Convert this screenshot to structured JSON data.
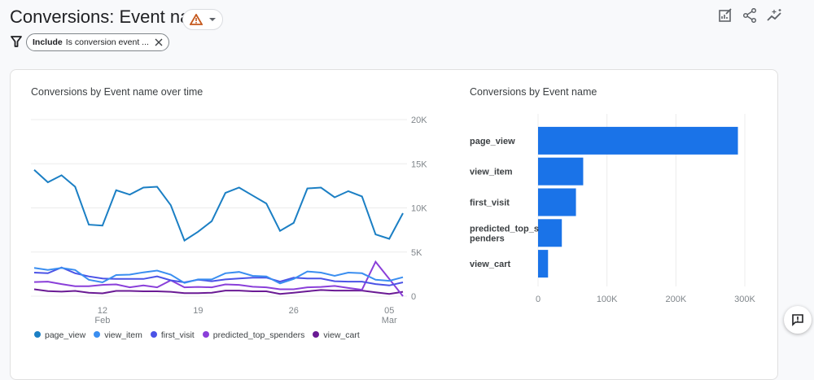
{
  "header": {
    "title": "Conversions: Event name",
    "warning_icon": "warning-triangle-icon",
    "dropdown_icon": "caret-down-icon"
  },
  "filter": {
    "icon": "filter-icon",
    "bold": "Include",
    "text": "Is conversion event ..."
  },
  "toolbar": {
    "icons": [
      "edit-report-icon",
      "share-icon",
      "insights-icon"
    ]
  },
  "colors": {
    "page_view": "#1b7fc4",
    "view_item": "#3a8ef0",
    "first_visit": "#4b53e6",
    "predicted_top_spenders": "#8a3fd9",
    "view_cart": "#6a1a94",
    "bar": "#1a73e8"
  },
  "chart_data": [
    {
      "type": "line",
      "title": "Conversions by Event name over time",
      "x": [
        "Feb 07",
        "Feb 08",
        "Feb 09",
        "Feb 10",
        "Feb 11",
        "Feb 12",
        "Feb 13",
        "Feb 14",
        "Feb 15",
        "Feb 16",
        "Feb 17",
        "Feb 18",
        "Feb 19",
        "Feb 20",
        "Feb 21",
        "Feb 22",
        "Feb 23",
        "Feb 24",
        "Feb 25",
        "Feb 26",
        "Feb 27",
        "Feb 28",
        "Mar 01",
        "Mar 02",
        "Mar 03",
        "Mar 04",
        "Mar 05",
        "Mar 06"
      ],
      "x_ticks": [
        {
          "label": "12",
          "sub": "Feb",
          "index": 5
        },
        {
          "label": "19",
          "sub": "",
          "index": 12
        },
        {
          "label": "26",
          "sub": "",
          "index": 19
        },
        {
          "label": "05",
          "sub": "Mar",
          "index": 26
        }
      ],
      "ylim": [
        0,
        20000
      ],
      "y_ticks": [
        "0",
        "5K",
        "10K",
        "15K",
        "20K"
      ],
      "grid": true,
      "legend": "bottom",
      "series": [
        {
          "name": "page_view",
          "values": [
            14300,
            12900,
            13700,
            12400,
            8100,
            8000,
            12000,
            11500,
            12300,
            12400,
            10300,
            6300,
            7300,
            8500,
            11700,
            12300,
            11400,
            10500,
            7400,
            8300,
            12200,
            12300,
            11200,
            11900,
            11300,
            7000,
            6500,
            9400
          ]
        },
        {
          "name": "view_item",
          "values": [
            3200,
            2970,
            3200,
            2970,
            1860,
            1570,
            2400,
            2440,
            2700,
            2900,
            2440,
            1500,
            1900,
            1900,
            2600,
            2750,
            2300,
            2240,
            1450,
            1950,
            2800,
            2670,
            2300,
            2670,
            2600,
            1860,
            1740,
            2150
          ]
        },
        {
          "name": "first_visit",
          "values": [
            2670,
            2600,
            3250,
            2600,
            2240,
            2000,
            1950,
            1950,
            1950,
            2240,
            1800,
            1570,
            1860,
            1700,
            1900,
            2000,
            2100,
            2100,
            1650,
            2100,
            2000,
            2000,
            1700,
            1650,
            1650,
            1370,
            1220,
            1570
          ]
        },
        {
          "name": "predicted_top_spenders",
          "values": [
            1600,
            1650,
            1370,
            1130,
            1130,
            1280,
            1340,
            1000,
            1220,
            1000,
            1800,
            1000,
            1050,
            1000,
            1340,
            1280,
            1070,
            1000,
            780,
            780,
            1000,
            1050,
            1160,
            930,
            730,
            3900,
            1950,
            0
          ]
        },
        {
          "name": "view_cart",
          "values": [
            780,
            580,
            520,
            600,
            400,
            320,
            600,
            600,
            550,
            550,
            500,
            350,
            350,
            400,
            640,
            640,
            550,
            550,
            260,
            400,
            550,
            700,
            640,
            640,
            640,
            440,
            260,
            500
          ]
        }
      ]
    },
    {
      "type": "bar",
      "orientation": "horizontal",
      "title": "Conversions by Event name",
      "categories": [
        "page_view",
        "view_item",
        "first_visit",
        "predicted_top_spenders",
        "view_cart"
      ],
      "category_lines": [
        [
          "page_view"
        ],
        [
          "view_item"
        ],
        [
          "first_visit"
        ],
        [
          "predicted_top_s",
          "penders"
        ],
        [
          "view_cart"
        ]
      ],
      "values": [
        290000,
        65500,
        55000,
        34500,
        14500
      ],
      "xlim": [
        0,
        330000
      ],
      "x_ticks": [
        {
          "label": "0",
          "value": 0
        },
        {
          "label": "100K",
          "value": 100000
        },
        {
          "label": "200K",
          "value": 200000
        },
        {
          "label": "300K",
          "value": 300000
        }
      ],
      "grid": true
    }
  ],
  "feedback": {
    "icon": "feedback-icon"
  }
}
